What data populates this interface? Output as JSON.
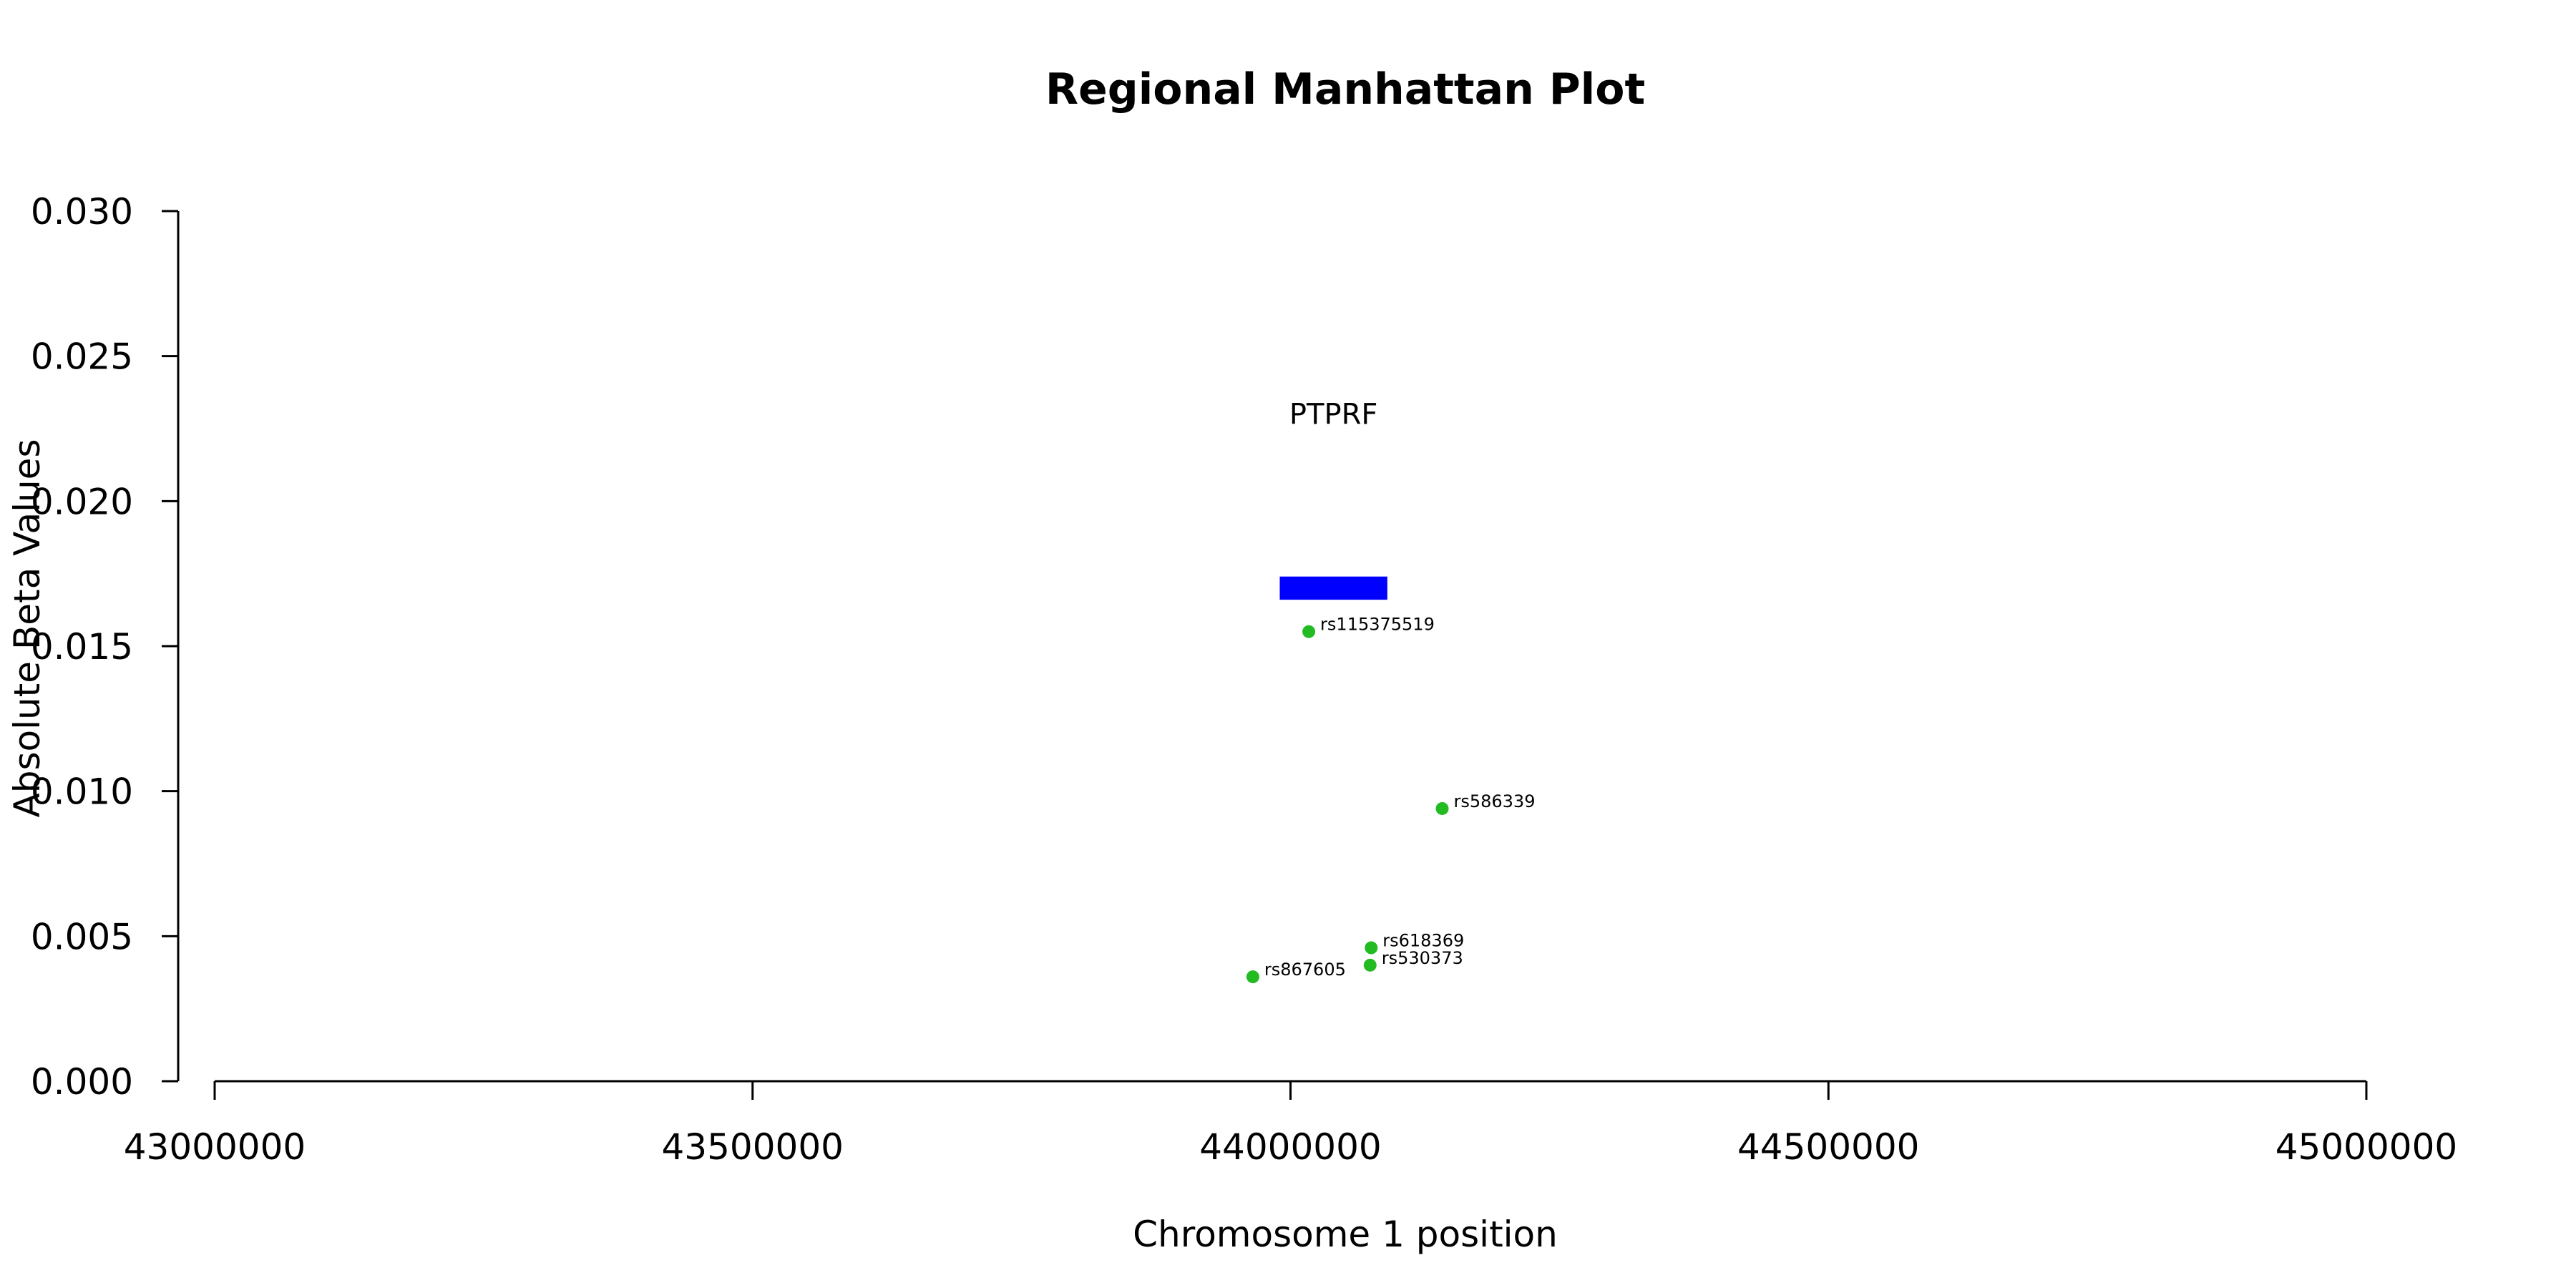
{
  "chart_data": {
    "type": "scatter",
    "title": "Regional Manhattan Plot",
    "xlabel": "Chromosome 1 position",
    "ylabel": "Absolute Beta Values",
    "xlim": [
      43000000,
      45000000
    ],
    "ylim": [
      0,
      0.03
    ],
    "x_ticks": [
      {
        "value": 43000000,
        "label": "43000000"
      },
      {
        "value": 43500000,
        "label": "43500000"
      },
      {
        "value": 44000000,
        "label": "44000000"
      },
      {
        "value": 44500000,
        "label": "44500000"
      },
      {
        "value": 45000000,
        "label": "45000000"
      }
    ],
    "y_ticks": [
      {
        "value": 0.0,
        "label": "0.000"
      },
      {
        "value": 0.005,
        "label": "0.005"
      },
      {
        "value": 0.01,
        "label": "0.010"
      },
      {
        "value": 0.015,
        "label": "0.015"
      },
      {
        "value": 0.02,
        "label": "0.020"
      },
      {
        "value": 0.025,
        "label": "0.025"
      },
      {
        "value": 0.03,
        "label": "0.030"
      }
    ],
    "grid": false,
    "point_color": "#22bb22",
    "gene_color": "#0000ff",
    "gene": {
      "label": "PTPRF",
      "x_start": 43990000,
      "x_end": 44090000,
      "y_bottom": 0.0166,
      "y_top": 0.0174,
      "label_y": 0.023
    },
    "points": [
      {
        "label": "rs115375519",
        "x": 44017000,
        "y": 0.0155
      },
      {
        "label": "rs586339",
        "x": 44141000,
        "y": 0.0094
      },
      {
        "label": "rs618369",
        "x": 44075000,
        "y": 0.0046
      },
      {
        "label": "rs530373",
        "x": 44074000,
        "y": 0.004
      },
      {
        "label": "rs867605",
        "x": 43965000,
        "y": 0.0036
      }
    ]
  }
}
